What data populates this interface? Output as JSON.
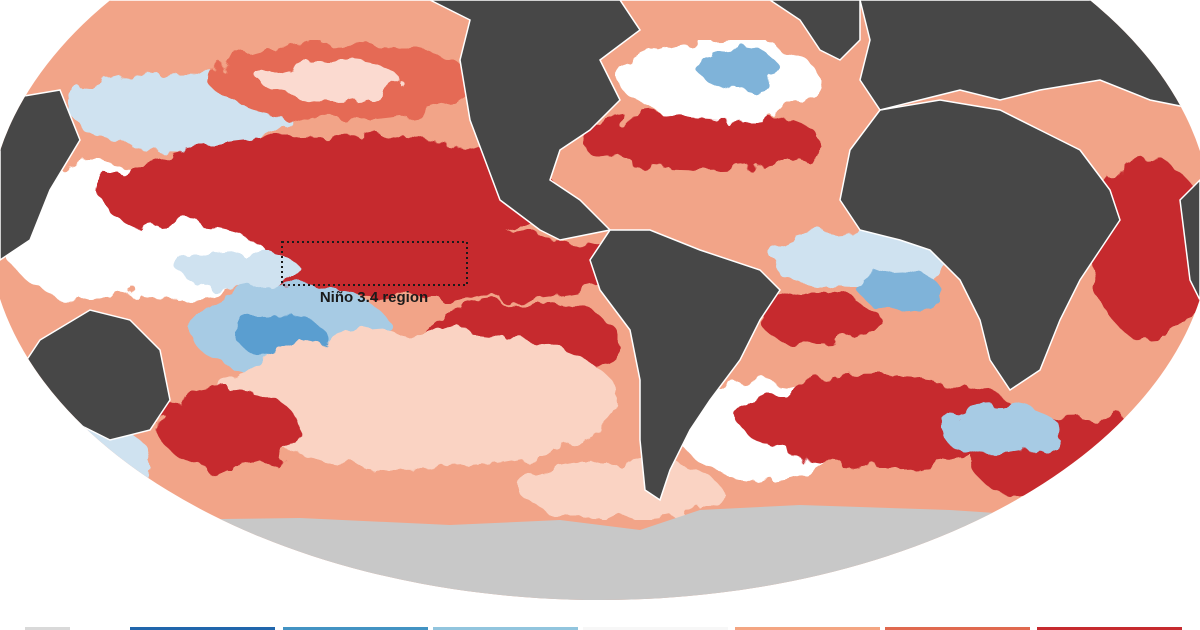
{
  "map": {
    "annotation": "Niño 3.4 region"
  }
}
